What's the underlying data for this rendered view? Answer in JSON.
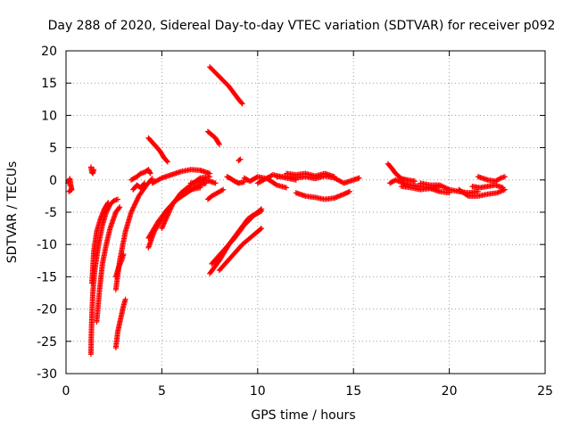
{
  "chart_data": {
    "type": "scatter",
    "title": "Day 288 of 2020, Sidereal Day-to-day VTEC variation (SDTVAR) for receiver p092",
    "xlabel": "GPS time / hours",
    "ylabel": "SDTVAR / TECUs",
    "xlim": [
      0,
      25
    ],
    "ylim": [
      -30,
      20
    ],
    "xticks": [
      0,
      5,
      10,
      15,
      20,
      25
    ],
    "yticks": [
      -30,
      -25,
      -20,
      -15,
      -10,
      -5,
      0,
      5,
      10,
      15,
      20
    ],
    "grid": true,
    "marker": "+",
    "color": "#ff0000",
    "series": [
      {
        "tracks": [
          [
            [
              0.1,
              -0.5
            ],
            [
              0.2,
              0.2
            ],
            [
              0.25,
              -0.8
            ],
            [
              0.3,
              -1.5
            ],
            [
              0.15,
              -1.8
            ]
          ],
          [
            [
              1.3,
              2.0
            ],
            [
              1.35,
              1.2
            ],
            [
              1.4,
              1.0
            ],
            [
              1.45,
              1.6
            ]
          ],
          [
            [
              1.3,
              -27.0
            ],
            [
              1.32,
              -24.0
            ],
            [
              1.35,
              -21.0
            ],
            [
              1.4,
              -17.5
            ],
            [
              1.5,
              -14.0
            ],
            [
              1.7,
              -10.0
            ],
            [
              1.9,
              -7.0
            ],
            [
              2.1,
              -5.0
            ],
            [
              2.3,
              -3.8
            ],
            [
              2.5,
              -3.2
            ],
            [
              2.7,
              -3.0
            ]
          ],
          [
            [
              1.35,
              -16.0
            ],
            [
              1.45,
              -11.0
            ],
            [
              1.6,
              -8.0
            ],
            [
              1.8,
              -6.0
            ],
            [
              2.0,
              -4.5
            ],
            [
              2.2,
              -3.5
            ]
          ],
          [
            [
              1.6,
              -22.0
            ],
            [
              1.75,
              -17.0
            ],
            [
              1.9,
              -13.0
            ],
            [
              2.1,
              -10.0
            ],
            [
              2.3,
              -7.5
            ],
            [
              2.6,
              -5.0
            ],
            [
              2.8,
              -4.2
            ]
          ],
          [
            [
              2.6,
              -17.0
            ],
            [
              2.8,
              -12.5
            ],
            [
              3.1,
              -8.0
            ],
            [
              3.4,
              -5.0
            ],
            [
              3.8,
              -2.5
            ],
            [
              4.2,
              -0.8
            ],
            [
              4.5,
              0.2
            ]
          ],
          [
            [
              2.6,
              -26.0
            ],
            [
              2.7,
              -23.5
            ],
            [
              2.85,
              -21.5
            ],
            [
              3.0,
              -19.5
            ],
            [
              3.1,
              -18.5
            ]
          ],
          [
            [
              2.6,
              -15.0
            ],
            [
              2.75,
              -13.5
            ],
            [
              2.9,
              -12.5
            ],
            [
              3.0,
              -11.5
            ]
          ],
          [
            [
              3.4,
              0.0
            ],
            [
              3.7,
              0.5
            ],
            [
              3.9,
              1.0
            ],
            [
              4.1,
              1.2
            ],
            [
              4.3,
              1.6
            ],
            [
              4.4,
              1.0
            ]
          ],
          [
            [
              3.5,
              -1.5
            ],
            [
              3.7,
              -0.8
            ],
            [
              3.9,
              -1.2
            ],
            [
              4.1,
              -0.5
            ]
          ],
          [
            [
              4.3,
              6.5
            ],
            [
              4.6,
              5.5
            ],
            [
              4.9,
              4.5
            ],
            [
              5.1,
              3.5
            ],
            [
              5.3,
              2.8
            ]
          ],
          [
            [
              4.3,
              -10.5
            ],
            [
              4.6,
              -8.0
            ],
            [
              5.0,
              -6.0
            ],
            [
              5.5,
              -4.0
            ],
            [
              6.0,
              -2.0
            ],
            [
              6.5,
              -0.8
            ],
            [
              7.0,
              0.3
            ],
            [
              7.5,
              0.5
            ]
          ],
          [
            [
              4.3,
              -9.0
            ],
            [
              4.8,
              -6.5
            ],
            [
              5.3,
              -4.5
            ],
            [
              5.8,
              -3.0
            ],
            [
              6.3,
              -2.0
            ],
            [
              6.8,
              -1.0
            ],
            [
              7.3,
              -0.5
            ]
          ],
          [
            [
              4.5,
              -0.5
            ],
            [
              5.0,
              0.3
            ],
            [
              5.5,
              0.8
            ],
            [
              6.0,
              1.3
            ],
            [
              6.5,
              1.6
            ],
            [
              7.0,
              1.5
            ],
            [
              7.5,
              1.0
            ]
          ],
          [
            [
              5.0,
              -7.5
            ],
            [
              5.3,
              -5.5
            ],
            [
              5.6,
              -3.5
            ],
            [
              6.0,
              -2.5
            ],
            [
              6.5,
              -1.5
            ],
            [
              7.0,
              -1.2
            ]
          ],
          [
            [
              6.5,
              -0.5
            ],
            [
              7.0,
              -0.3
            ],
            [
              7.3,
              0.0
            ],
            [
              7.8,
              -0.5
            ]
          ],
          [
            [
              7.4,
              -3.0
            ],
            [
              7.6,
              -2.5
            ],
            [
              7.9,
              -2.0
            ],
            [
              8.2,
              -1.5
            ]
          ],
          [
            [
              7.4,
              7.5
            ],
            [
              7.6,
              7.0
            ],
            [
              7.8,
              6.5
            ],
            [
              8.0,
              5.5
            ]
          ],
          [
            [
              7.5,
              17.5
            ],
            [
              8.0,
              16.0
            ],
            [
              8.5,
              14.5
            ],
            [
              9.0,
              12.5
            ],
            [
              9.2,
              11.8
            ]
          ],
          [
            [
              8.4,
              0.5
            ],
            [
              8.6,
              0.2
            ],
            [
              8.8,
              -0.2
            ],
            [
              9.0,
              -0.5
            ],
            [
              9.3,
              -0.3
            ]
          ],
          [
            [
              9.0,
              3.0
            ],
            [
              9.1,
              3.2
            ]
          ],
          [
            [
              7.5,
              -14.5
            ],
            [
              8.0,
              -12.5
            ],
            [
              8.5,
              -10.0
            ],
            [
              9.0,
              -8.0
            ],
            [
              9.5,
              -6.0
            ],
            [
              10.0,
              -5.0
            ],
            [
              10.2,
              -4.5
            ]
          ],
          [
            [
              7.6,
              -13.0
            ],
            [
              8.2,
              -11.0
            ],
            [
              8.8,
              -9.0
            ],
            [
              9.3,
              -7.0
            ],
            [
              9.8,
              -5.5
            ],
            [
              10.2,
              -4.8
            ]
          ],
          [
            [
              8.0,
              -14.0
            ],
            [
              8.6,
              -12.0
            ],
            [
              9.2,
              -10.0
            ],
            [
              9.8,
              -8.5
            ],
            [
              10.2,
              -7.5
            ]
          ],
          [
            [
              9.3,
              0.3
            ],
            [
              9.6,
              -0.2
            ],
            [
              10.0,
              0.5
            ],
            [
              10.5,
              0.2
            ],
            [
              11.0,
              -0.8
            ],
            [
              11.5,
              -1.2
            ]
          ],
          [
            [
              10.0,
              -0.5
            ],
            [
              10.8,
              0.8
            ],
            [
              11.5,
              0.3
            ],
            [
              12.0,
              0.0
            ]
          ],
          [
            [
              11.0,
              0.5
            ],
            [
              11.5,
              0.5
            ],
            [
              12.0,
              0.3
            ],
            [
              12.5,
              0.5
            ],
            [
              13.0,
              0.2
            ],
            [
              13.5,
              0.6
            ],
            [
              14.0,
              0.3
            ],
            [
              14.5,
              -0.5
            ],
            [
              15.0,
              0.0
            ],
            [
              15.3,
              0.3
            ]
          ],
          [
            [
              11.5,
              1.0
            ],
            [
              12.0,
              0.8
            ],
            [
              12.5,
              1.0
            ],
            [
              13.0,
              0.6
            ],
            [
              13.5,
              1.0
            ],
            [
              14.0,
              0.5
            ]
          ],
          [
            [
              12.0,
              -2.0
            ],
            [
              12.5,
              -2.5
            ],
            [
              13.0,
              -2.7
            ],
            [
              13.5,
              -3.0
            ],
            [
              14.0,
              -2.8
            ],
            [
              14.5,
              -2.2
            ],
            [
              14.8,
              -1.8
            ]
          ],
          [
            [
              16.8,
              2.5
            ],
            [
              17.0,
              1.8
            ],
            [
              17.2,
              1.0
            ],
            [
              17.5,
              0.2
            ],
            [
              17.8,
              0.0
            ],
            [
              18.2,
              -0.2
            ]
          ],
          [
            [
              16.9,
              -0.5
            ],
            [
              17.2,
              0.0
            ],
            [
              17.6,
              -0.5
            ],
            [
              18.0,
              -0.8
            ],
            [
              18.5,
              -1.0
            ],
            [
              19.0,
              -1.2
            ],
            [
              19.5,
              -1.0
            ]
          ],
          [
            [
              17.5,
              -1.0
            ],
            [
              18.0,
              -1.2
            ],
            [
              18.5,
              -1.5
            ],
            [
              19.0,
              -1.3
            ],
            [
              19.5,
              -1.8
            ],
            [
              20.0,
              -2.0
            ]
          ],
          [
            [
              18.5,
              -0.5
            ],
            [
              19.0,
              -0.8
            ],
            [
              19.5,
              -0.8
            ],
            [
              20.0,
              -1.5
            ],
            [
              20.5,
              -1.8
            ],
            [
              21.0,
              -2.0
            ],
            [
              21.5,
              -1.8
            ]
          ],
          [
            [
              20.5,
              -1.5
            ],
            [
              21.0,
              -2.5
            ],
            [
              21.5,
              -2.5
            ],
            [
              22.0,
              -2.2
            ],
            [
              22.5,
              -2.0
            ],
            [
              22.9,
              -1.5
            ]
          ],
          [
            [
              21.2,
              -1.0
            ],
            [
              21.6,
              -1.2
            ],
            [
              22.0,
              -1.0
            ],
            [
              22.4,
              -0.8
            ],
            [
              22.8,
              -1.2
            ]
          ],
          [
            [
              21.5,
              0.5
            ],
            [
              22.0,
              0.0
            ],
            [
              22.4,
              -0.2
            ],
            [
              22.7,
              0.3
            ],
            [
              22.9,
              0.5
            ]
          ]
        ]
      }
    ]
  }
}
